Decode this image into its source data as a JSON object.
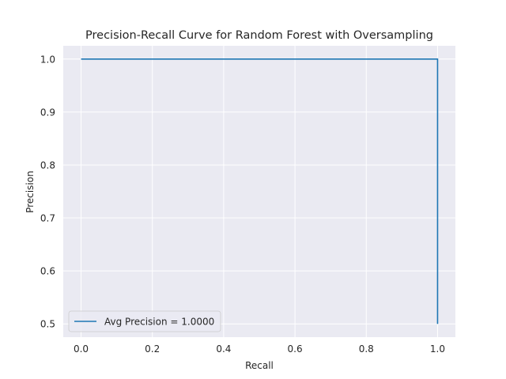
{
  "chart_data": {
    "type": "line",
    "title": "Precision-Recall Curve for Random Forest with Oversampling",
    "xlabel": "Recall",
    "ylabel": "Precision",
    "xlim": [
      -0.05,
      1.05
    ],
    "ylim": [
      0.475,
      1.025
    ],
    "xticks": [
      0.0,
      0.2,
      0.4,
      0.6,
      0.8,
      1.0
    ],
    "xtick_labels": [
      "0.0",
      "0.2",
      "0.4",
      "0.6",
      "0.8",
      "1.0"
    ],
    "yticks": [
      0.5,
      0.6,
      0.7,
      0.8,
      0.9,
      1.0
    ],
    "ytick_labels": [
      "0.5",
      "0.6",
      "0.7",
      "0.8",
      "0.9",
      "1.0"
    ],
    "grid": true,
    "legend_position": "lower-left",
    "series": [
      {
        "name": "Avg Precision = 1.0000",
        "color": "#1f77b4",
        "x": [
          0.0,
          1.0,
          1.0
        ],
        "y": [
          1.0,
          1.0,
          0.5
        ]
      }
    ]
  },
  "colors": {
    "plot_background": "#eaeaf2",
    "grid": "#ffffff",
    "series": "#1f77b4"
  }
}
